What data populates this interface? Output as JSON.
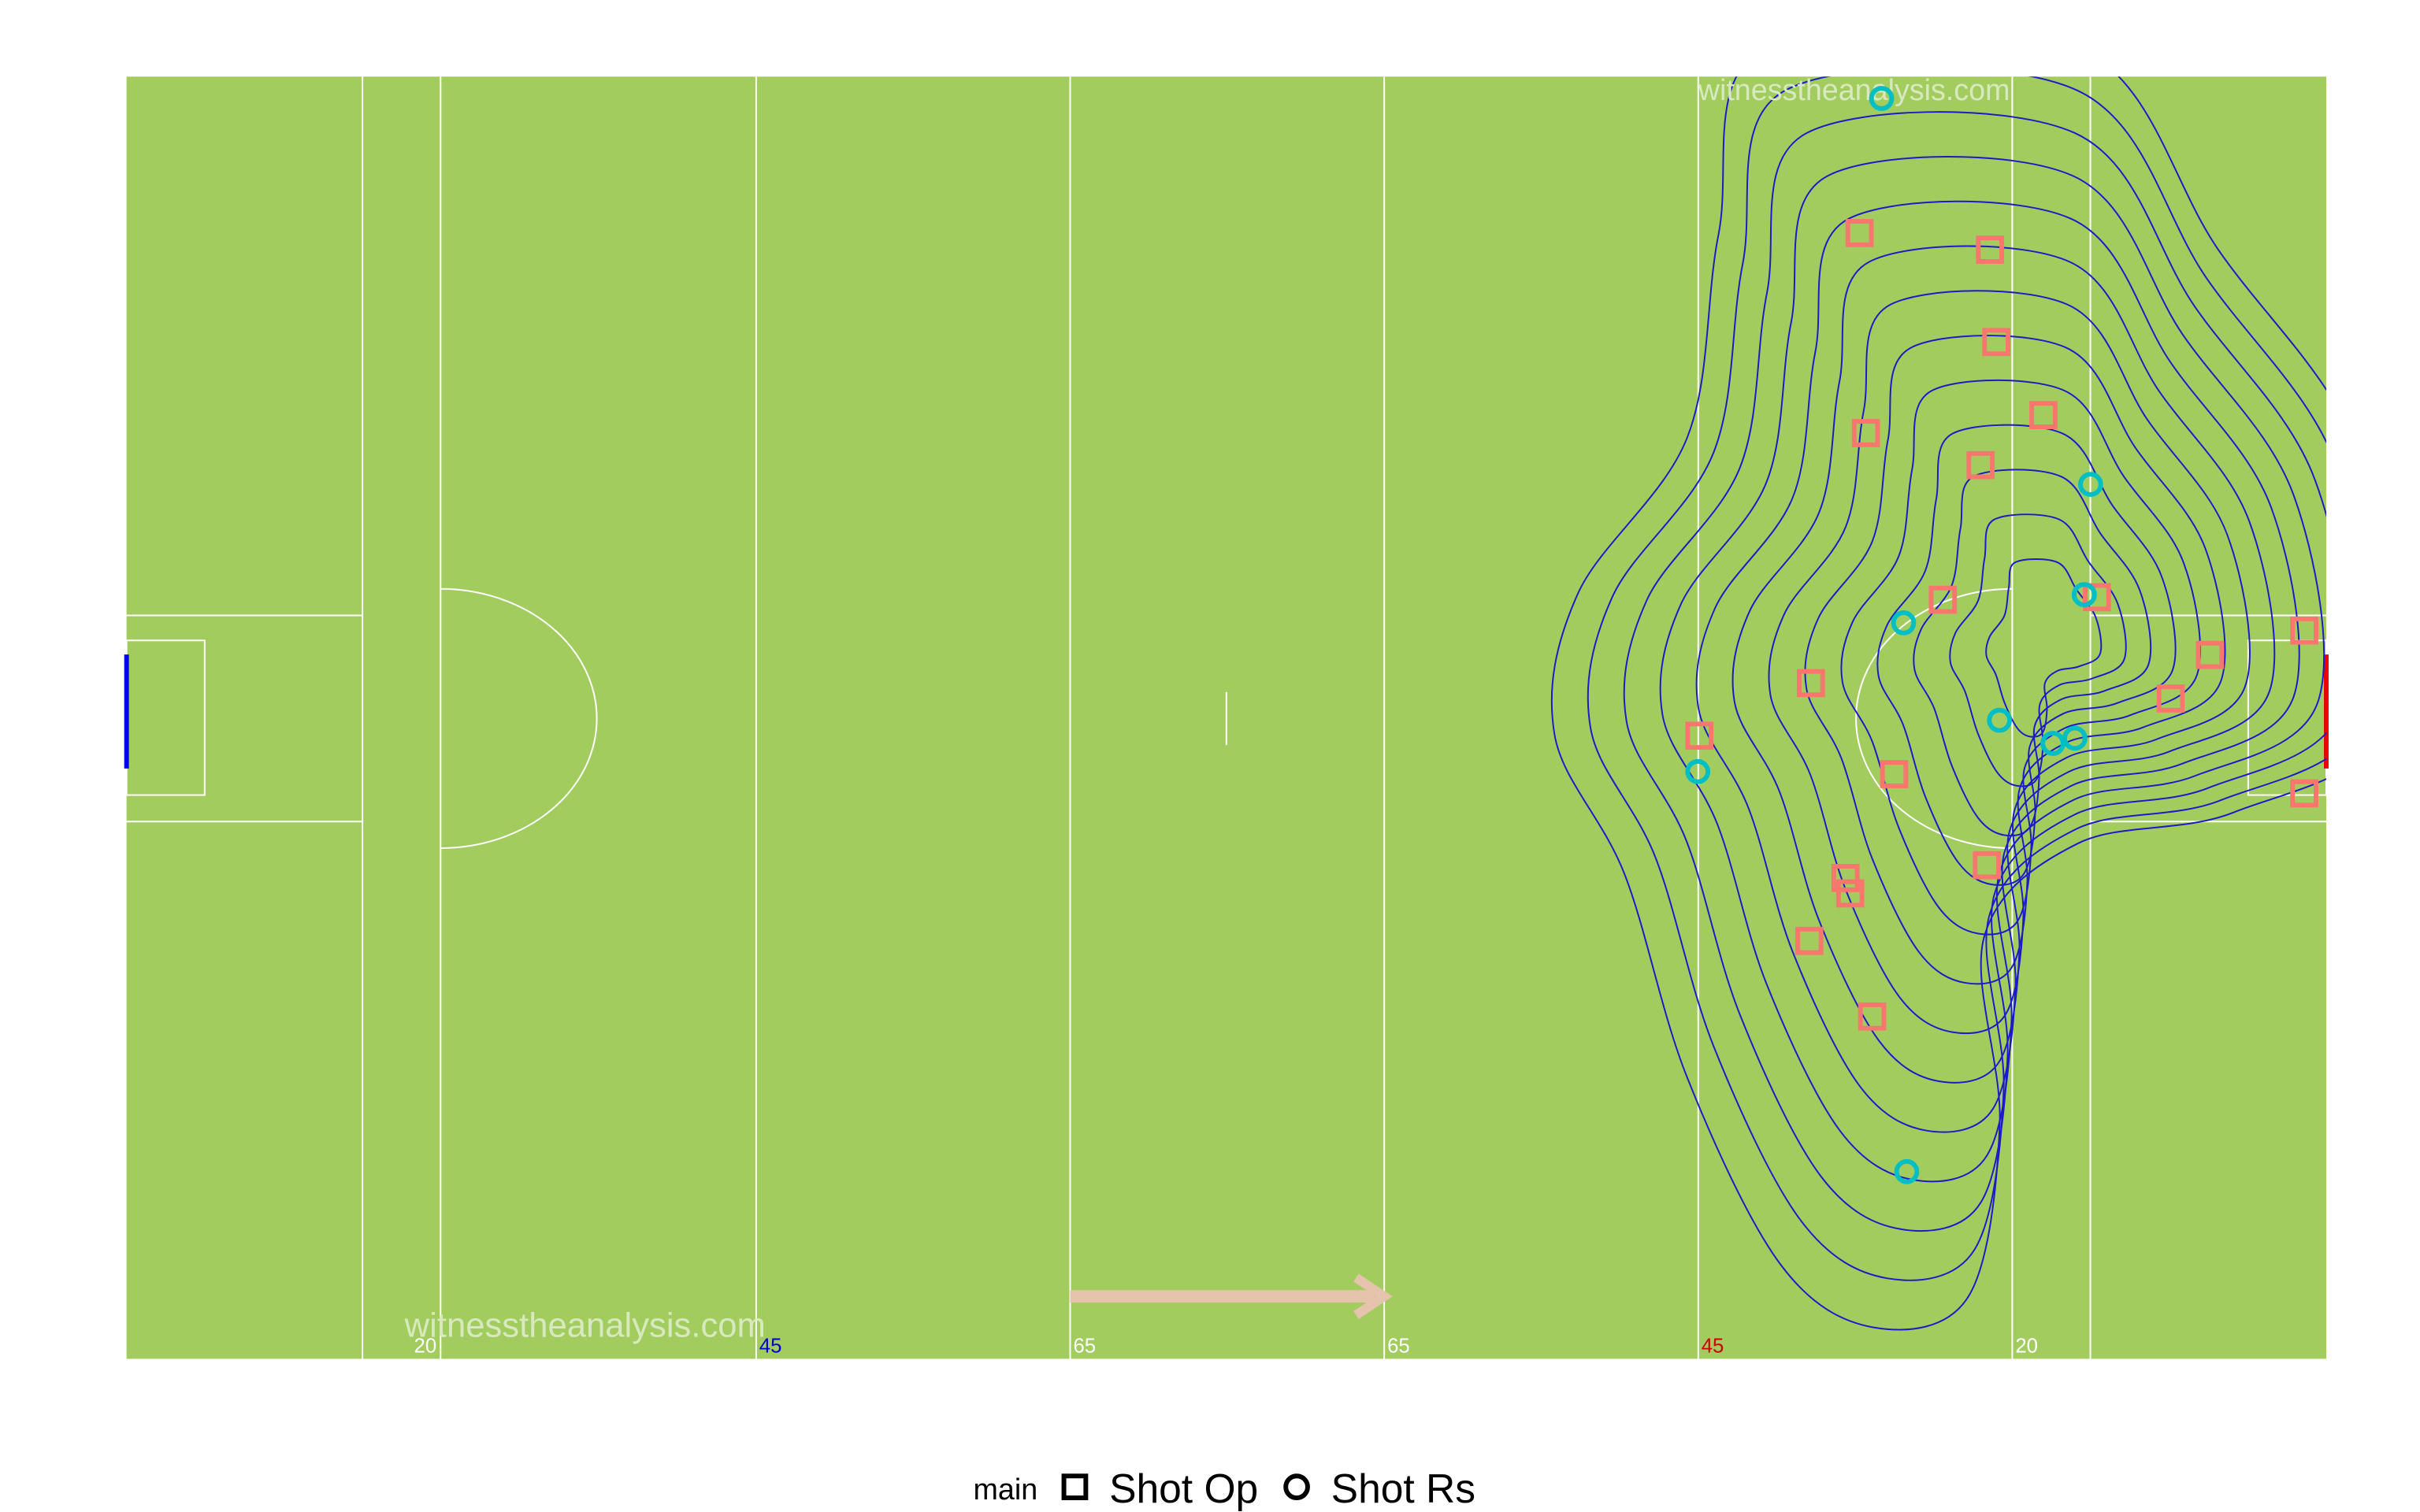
{
  "chart_data": {
    "type": "scatter",
    "watermark": "witnesstheanalysis.com",
    "pitch_labels": [
      "20",
      "45",
      "65",
      "65",
      "45",
      "20"
    ],
    "legend_title": "main",
    "xlim": [
      0,
      140
    ],
    "ylim": [
      0,
      100
    ],
    "series": [
      {
        "name": "Shot Op",
        "marker": "square",
        "color": "#f8766d",
        "x": [
          110.3,
          118.6,
          119.0,
          110.7,
          122.0,
          118.0,
          115.6,
          125.4,
          132.6,
          138.6,
          107.2,
          130.1,
          100.1,
          112.5,
          138.6,
          118.4,
          109.4,
          109.7,
          107.1,
          111.1
        ],
        "values": [
          87.8,
          86.5,
          79.3,
          72.2,
          73.6,
          69.7,
          59.2,
          59.4,
          54.9,
          56.8,
          52.7,
          51.5,
          48.6,
          45.6,
          44.1,
          38.5,
          37.5,
          36.3,
          32.6,
          26.7
        ]
      },
      {
        "name": "Shot Rs",
        "marker": "circle",
        "color": "#00bfc4",
        "x": [
          111.7,
          125.0,
          124.6,
          113.1,
          119.2,
          122.6,
          124.0,
          100.0,
          113.3
        ],
        "values": [
          98.3,
          68.2,
          59.6,
          57.4,
          49.8,
          48.0,
          48.4,
          45.8,
          14.6
        ]
      }
    ]
  }
}
